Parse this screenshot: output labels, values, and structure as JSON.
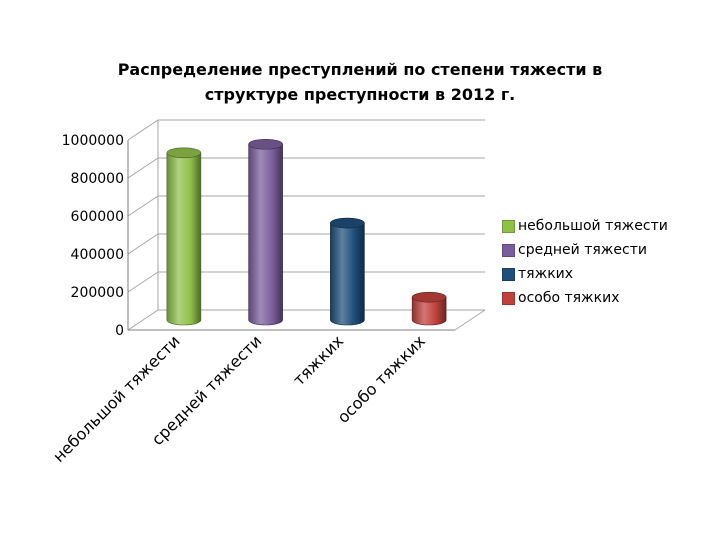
{
  "chart_data": {
    "type": "bar",
    "style": "3d-cylinder",
    "title": [
      "Распределение преступлений по степени тяжести в",
      "структуре преступности в 2012 г."
    ],
    "categories": [
      "небольшой тяжести",
      "средней тяжести",
      "тяжких",
      "особо тяжких"
    ],
    "values": [
      880000,
      925000,
      510000,
      120000
    ],
    "colors": [
      "#8fc04a",
      "#7a5e9c",
      "#1f4e7a",
      "#c0413c"
    ],
    "ylim": [
      0,
      1000000
    ],
    "yticks": [
      "0",
      "200000",
      "400000",
      "600000",
      "800000",
      "1000000"
    ],
    "grid": true,
    "legend": {
      "position": "right",
      "entries": [
        "небольшой тяжести",
        "средней тяжести",
        "тяжких",
        "особо тяжких"
      ]
    }
  }
}
